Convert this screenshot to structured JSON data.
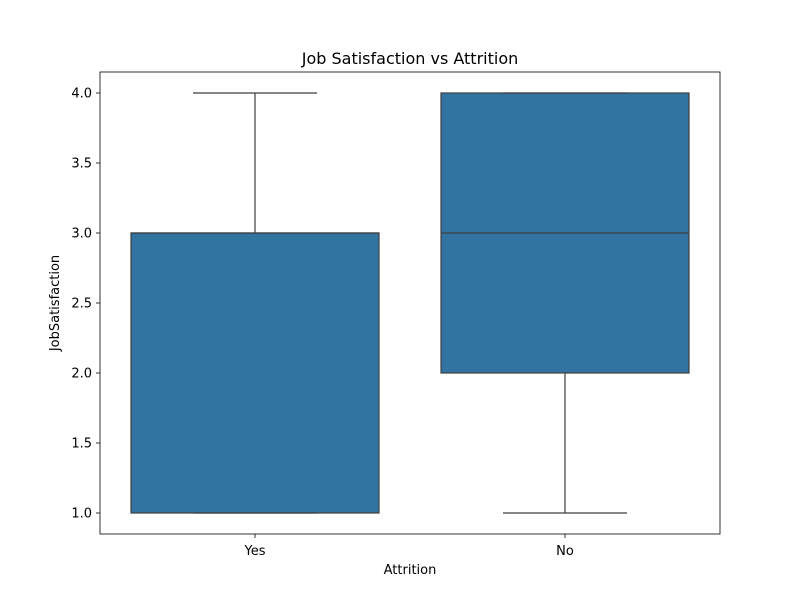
{
  "chart_data": {
    "type": "box",
    "title": "Job Satisfaction vs Attrition",
    "xlabel": "Attrition",
    "ylabel": "JobSatisfaction",
    "categories": [
      "Yes",
      "No"
    ],
    "boxes": [
      {
        "category": "Yes",
        "whisker_low": 1.0,
        "q1": 1.0,
        "median": 3.0,
        "q3": 3.0,
        "whisker_high": 4.0
      },
      {
        "category": "No",
        "whisker_low": 1.0,
        "q1": 2.0,
        "median": 3.0,
        "q3": 4.0,
        "whisker_high": 4.0
      }
    ],
    "ylim": [
      0.85,
      4.15
    ],
    "yticks": [
      1.0,
      1.5,
      2.0,
      2.5,
      3.0,
      3.5,
      4.0
    ],
    "ytick_labels": [
      "1.0",
      "1.5",
      "2.0",
      "2.5",
      "3.0",
      "3.5",
      "4.0"
    ],
    "grid": false,
    "colors": {
      "box_fill": "#3274a1",
      "line": "#3f3f3f"
    }
  }
}
